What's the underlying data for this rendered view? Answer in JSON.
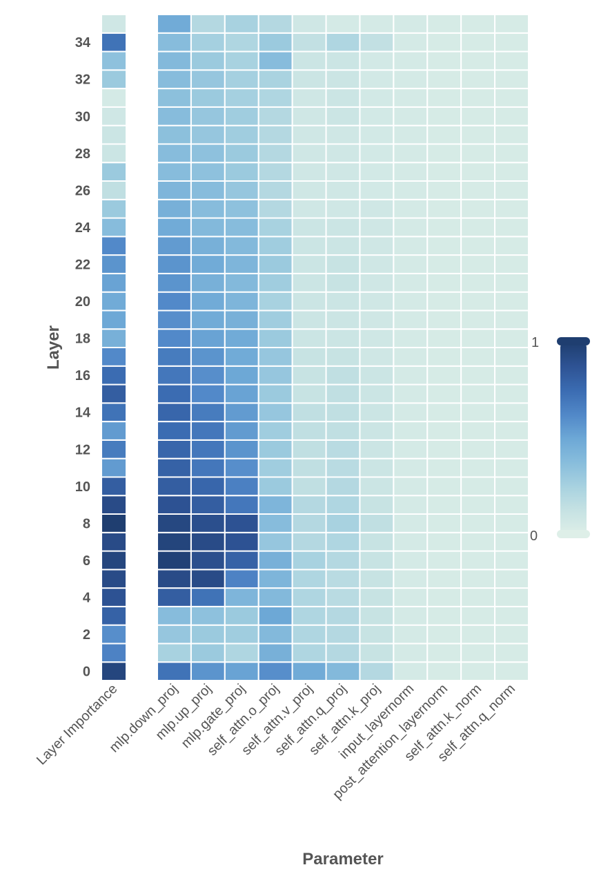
{
  "chart_data": {
    "type": "heatmap",
    "title": "",
    "xlabel": "Parameter",
    "ylabel": "Layer",
    "importance_column_label": "Layer Importance",
    "columns": [
      "mlp.down_proj",
      "mlp.up_proj",
      "mlp.gate_proj",
      "self_attn.o_proj",
      "self_attn.v_proj",
      "self_attn.q_proj",
      "self_attn.k_proj",
      "input_layernorm",
      "post_attention_layernorm",
      "self_attn.k_norm",
      "self_attn.q_norm"
    ],
    "rows": [
      0,
      1,
      2,
      3,
      4,
      5,
      6,
      7,
      8,
      9,
      10,
      11,
      12,
      13,
      14,
      15,
      16,
      17,
      18,
      19,
      20,
      21,
      22,
      23,
      24,
      25,
      26,
      27,
      28,
      29,
      30,
      31,
      32,
      33,
      34,
      35
    ],
    "y_tick_labels": [
      "0",
      "2",
      "4",
      "6",
      "8",
      "10",
      "12",
      "14",
      "16",
      "18",
      "20",
      "22",
      "24",
      "26",
      "28",
      "30",
      "32",
      "34"
    ],
    "colorbar": {
      "min": 0,
      "max": 1,
      "min_label": "0",
      "max_label": "1"
    },
    "colormap": [
      "#deefe8",
      "#c6e2e3",
      "#a8d2e0",
      "#88bddc",
      "#6da8d6",
      "#5188c8",
      "#3b6cb2",
      "#2e5394",
      "#1f3e70"
    ],
    "layer_importance": [
      0.95,
      0.65,
      0.6,
      0.8,
      0.88,
      0.92,
      0.95,
      0.92,
      1.0,
      0.92,
      0.82,
      0.55,
      0.68,
      0.55,
      0.72,
      0.82,
      0.75,
      0.62,
      0.45,
      0.5,
      0.48,
      0.52,
      0.58,
      0.62,
      0.38,
      0.3,
      0.15,
      0.3,
      0.1,
      0.1,
      0.08,
      0.05,
      0.3,
      0.35,
      0.72,
      0.08
    ],
    "values": [
      [
        0.72,
        0.58,
        0.52,
        0.6,
        0.48,
        0.4,
        0.2,
        0.05,
        0.04,
        0.04,
        0.04
      ],
      [
        0.25,
        0.3,
        0.22,
        0.45,
        0.22,
        0.2,
        0.12,
        0.05,
        0.04,
        0.04,
        0.04
      ],
      [
        0.32,
        0.3,
        0.28,
        0.4,
        0.22,
        0.2,
        0.12,
        0.05,
        0.04,
        0.04,
        0.04
      ],
      [
        0.38,
        0.35,
        0.3,
        0.5,
        0.22,
        0.2,
        0.12,
        0.05,
        0.04,
        0.04,
        0.04
      ],
      [
        0.82,
        0.72,
        0.42,
        0.4,
        0.22,
        0.18,
        0.12,
        0.05,
        0.04,
        0.04,
        0.04
      ],
      [
        0.92,
        0.92,
        0.65,
        0.42,
        0.22,
        0.18,
        0.12,
        0.05,
        0.04,
        0.04,
        0.04
      ],
      [
        0.98,
        0.9,
        0.8,
        0.45,
        0.25,
        0.2,
        0.12,
        0.05,
        0.04,
        0.04,
        0.04
      ],
      [
        0.96,
        0.92,
        0.88,
        0.32,
        0.2,
        0.22,
        0.12,
        0.05,
        0.04,
        0.04,
        0.04
      ],
      [
        0.94,
        0.9,
        0.88,
        0.38,
        0.2,
        0.25,
        0.15,
        0.05,
        0.04,
        0.04,
        0.04
      ],
      [
        0.88,
        0.82,
        0.7,
        0.42,
        0.2,
        0.22,
        0.12,
        0.05,
        0.04,
        0.04,
        0.04
      ],
      [
        0.82,
        0.78,
        0.66,
        0.3,
        0.15,
        0.2,
        0.1,
        0.05,
        0.04,
        0.04,
        0.04
      ],
      [
        0.8,
        0.7,
        0.6,
        0.28,
        0.15,
        0.18,
        0.1,
        0.05,
        0.04,
        0.04,
        0.04
      ],
      [
        0.78,
        0.7,
        0.58,
        0.3,
        0.15,
        0.18,
        0.1,
        0.05,
        0.04,
        0.04,
        0.04
      ],
      [
        0.75,
        0.7,
        0.55,
        0.28,
        0.15,
        0.15,
        0.1,
        0.05,
        0.04,
        0.04,
        0.04
      ],
      [
        0.78,
        0.68,
        0.55,
        0.32,
        0.15,
        0.15,
        0.1,
        0.05,
        0.04,
        0.04,
        0.04
      ],
      [
        0.75,
        0.62,
        0.52,
        0.3,
        0.12,
        0.15,
        0.1,
        0.05,
        0.04,
        0.04,
        0.04
      ],
      [
        0.7,
        0.6,
        0.5,
        0.32,
        0.12,
        0.15,
        0.1,
        0.05,
        0.04,
        0.04,
        0.04
      ],
      [
        0.68,
        0.58,
        0.48,
        0.32,
        0.12,
        0.12,
        0.08,
        0.05,
        0.04,
        0.04,
        0.04
      ],
      [
        0.62,
        0.52,
        0.48,
        0.3,
        0.1,
        0.1,
        0.08,
        0.05,
        0.04,
        0.04,
        0.04
      ],
      [
        0.6,
        0.48,
        0.45,
        0.28,
        0.1,
        0.1,
        0.08,
        0.05,
        0.04,
        0.04,
        0.04
      ],
      [
        0.62,
        0.48,
        0.42,
        0.25,
        0.1,
        0.1,
        0.08,
        0.05,
        0.04,
        0.04,
        0.04
      ],
      [
        0.58,
        0.45,
        0.4,
        0.28,
        0.1,
        0.12,
        0.08,
        0.05,
        0.04,
        0.04,
        0.04
      ],
      [
        0.58,
        0.48,
        0.42,
        0.3,
        0.1,
        0.12,
        0.08,
        0.05,
        0.04,
        0.04,
        0.04
      ],
      [
        0.55,
        0.45,
        0.4,
        0.28,
        0.1,
        0.1,
        0.08,
        0.05,
        0.04,
        0.04,
        0.04
      ],
      [
        0.48,
        0.4,
        0.38,
        0.25,
        0.1,
        0.1,
        0.08,
        0.05,
        0.04,
        0.04,
        0.04
      ],
      [
        0.45,
        0.38,
        0.35,
        0.2,
        0.08,
        0.08,
        0.08,
        0.05,
        0.04,
        0.04,
        0.04
      ],
      [
        0.42,
        0.38,
        0.32,
        0.2,
        0.08,
        0.08,
        0.06,
        0.05,
        0.04,
        0.04,
        0.04
      ],
      [
        0.38,
        0.35,
        0.3,
        0.2,
        0.08,
        0.08,
        0.06,
        0.05,
        0.04,
        0.04,
        0.04
      ],
      [
        0.38,
        0.35,
        0.3,
        0.2,
        0.08,
        0.08,
        0.06,
        0.05,
        0.04,
        0.04,
        0.04
      ],
      [
        0.36,
        0.32,
        0.28,
        0.2,
        0.08,
        0.08,
        0.06,
        0.05,
        0.04,
        0.04,
        0.04
      ],
      [
        0.38,
        0.32,
        0.28,
        0.2,
        0.08,
        0.1,
        0.06,
        0.05,
        0.04,
        0.04,
        0.04
      ],
      [
        0.36,
        0.3,
        0.26,
        0.22,
        0.08,
        0.1,
        0.06,
        0.05,
        0.04,
        0.04,
        0.04
      ],
      [
        0.38,
        0.32,
        0.26,
        0.24,
        0.1,
        0.1,
        0.06,
        0.05,
        0.04,
        0.04,
        0.04
      ],
      [
        0.4,
        0.3,
        0.25,
        0.38,
        0.1,
        0.1,
        0.06,
        0.05,
        0.04,
        0.04,
        0.04
      ],
      [
        0.38,
        0.26,
        0.22,
        0.3,
        0.14,
        0.22,
        0.14,
        0.05,
        0.04,
        0.04,
        0.04
      ],
      [
        0.48,
        0.2,
        0.25,
        0.2,
        0.08,
        0.05,
        0.05,
        0.05,
        0.04,
        0.04,
        0.04
      ]
    ]
  }
}
